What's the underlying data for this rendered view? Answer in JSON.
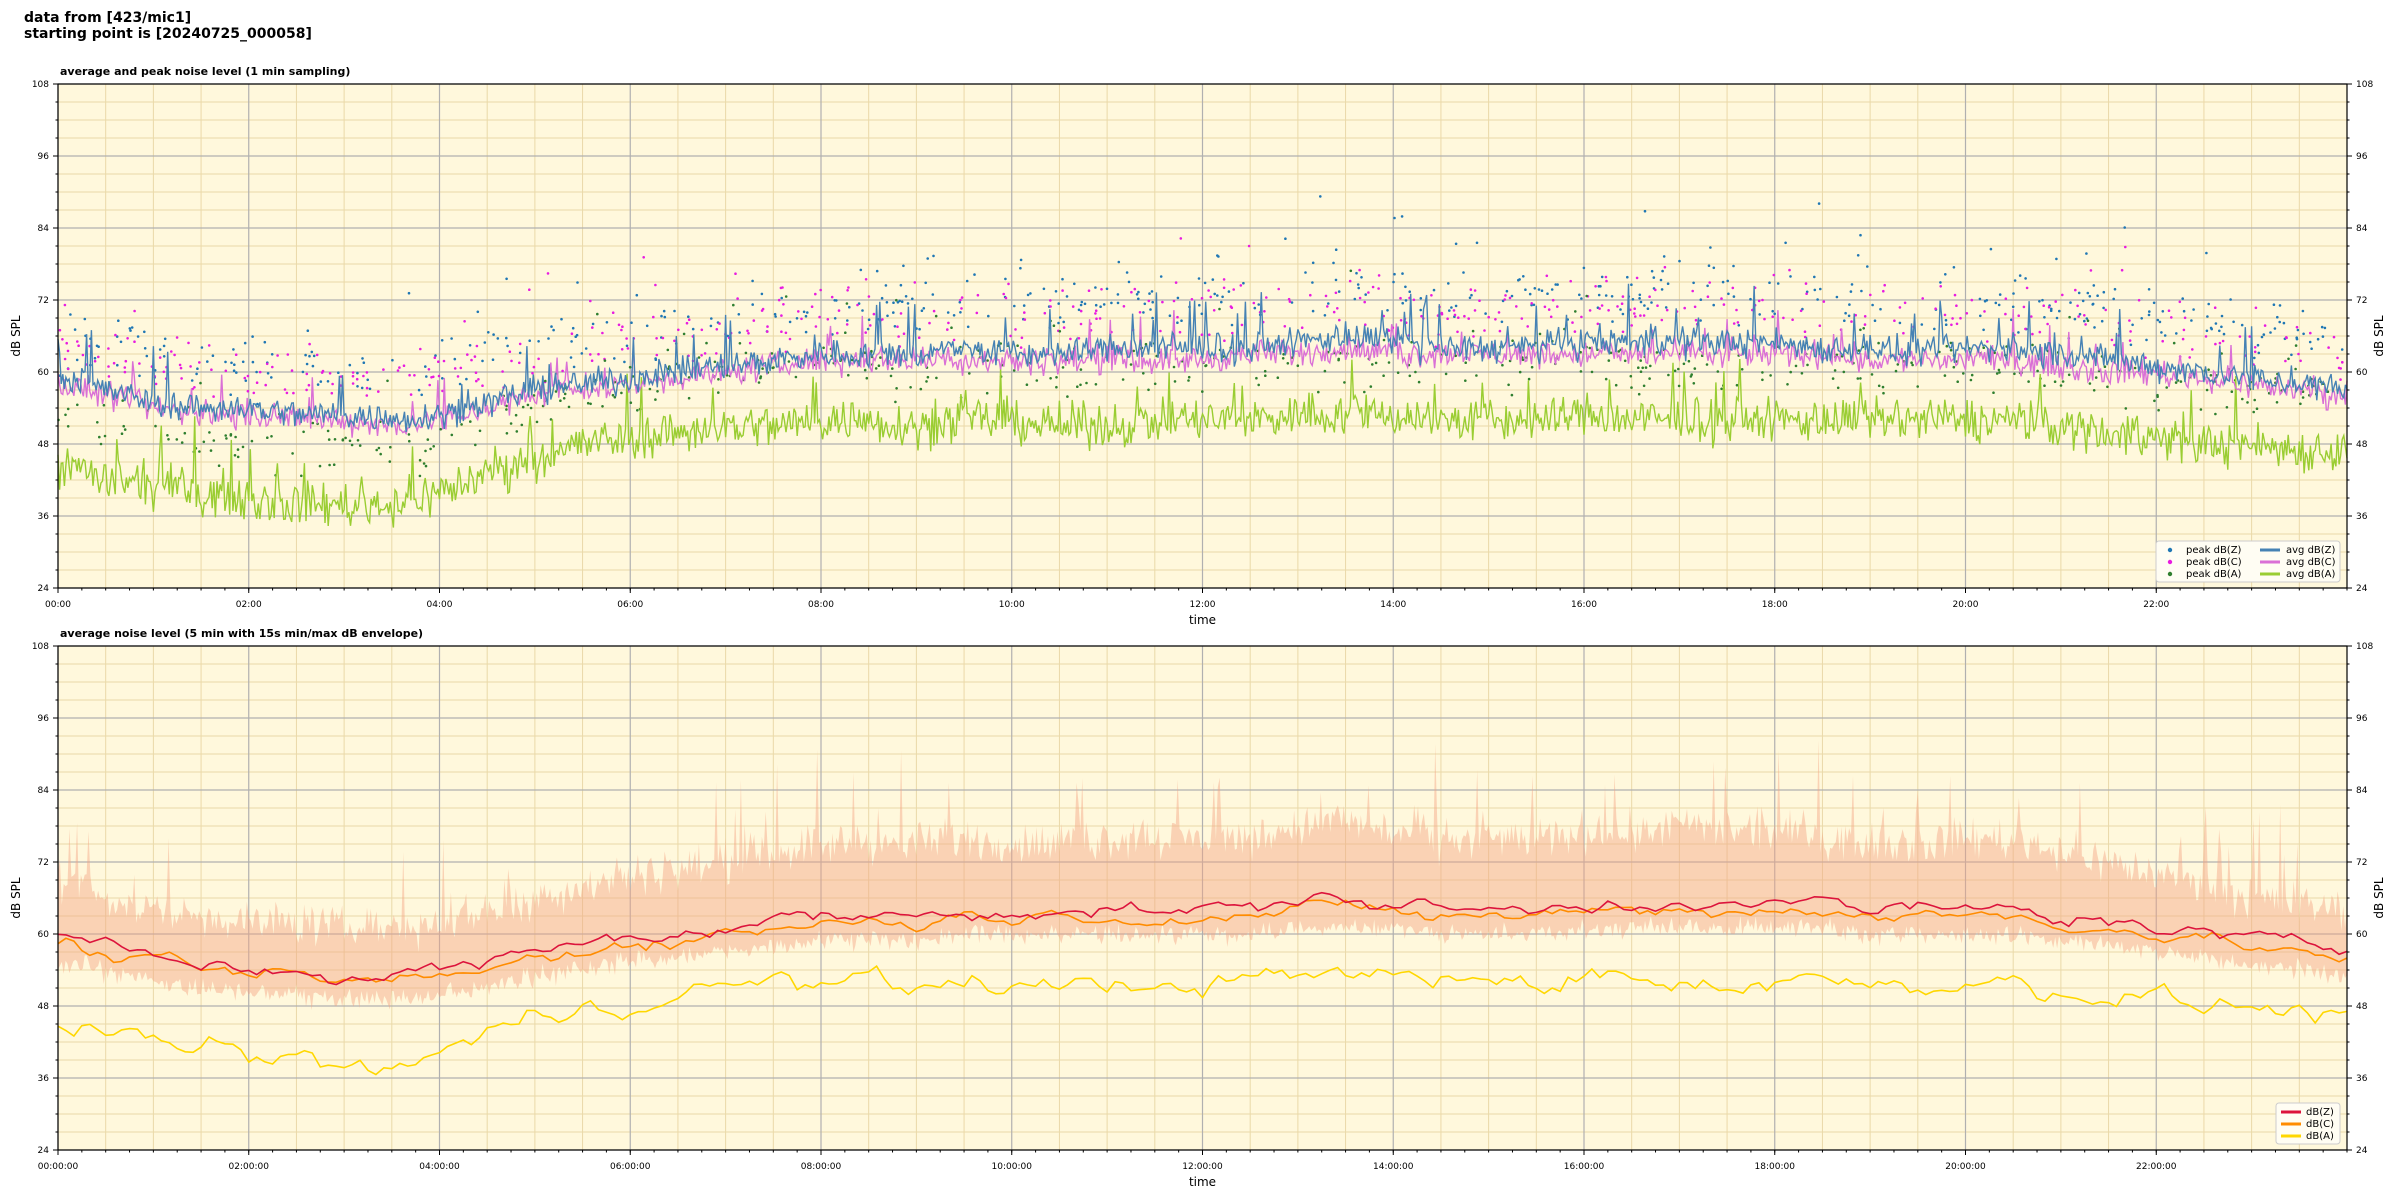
{
  "header": {
    "line1": "data from [423/mic1]",
    "line2": "starting point is [20240725_000058]"
  },
  "colors": {
    "plot_background": "#fff8dc",
    "grid_major": "#b0b0b0",
    "grid_minor": "#ead9a8",
    "peak_z": "#1f77b4",
    "peak_c": "#e81ce0",
    "peak_a": "#2f7f2f",
    "avg_z": "#4682b4",
    "avg_c": "#da70d6",
    "avg_a": "#9acd32",
    "env_z": "#dc143c",
    "env_c": "#ff8c00",
    "env_a": "#ffd700",
    "envelope_fill": "#f4a582"
  },
  "chart_data": [
    {
      "type": "line",
      "title": "average and peak noise level (1 min sampling)",
      "xlabel": "time",
      "ylabel": "dB SPL",
      "ylim": [
        24,
        108
      ],
      "xlim_hours": [
        0,
        24
      ],
      "x_ticks": [
        "00:00",
        "02:00",
        "04:00",
        "06:00",
        "08:00",
        "10:00",
        "12:00",
        "14:00",
        "16:00",
        "18:00",
        "20:00",
        "22:00"
      ],
      "y_ticks": [
        24,
        36,
        48,
        60,
        72,
        84,
        96,
        108
      ],
      "grid": true,
      "legend_position": "bottom-right",
      "legend_entries": [
        "peak dB(Z)",
        "peak dB(C)",
        "peak dB(A)",
        "avg dB(Z)",
        "avg dB(C)",
        "avg dB(A)"
      ],
      "x_hours": [
        0,
        0.5,
        1,
        1.5,
        2,
        2.5,
        3,
        3.5,
        4,
        4.5,
        5,
        5.5,
        6,
        6.5,
        7,
        7.5,
        8,
        8.5,
        9,
        9.5,
        10,
        10.5,
        11,
        11.5,
        12,
        12.5,
        13,
        13.5,
        14,
        14.5,
        15,
        15.5,
        16,
        16.5,
        17,
        17.5,
        18,
        18.5,
        19,
        19.5,
        20,
        20.5,
        21,
        21.5,
        22,
        22.5,
        23,
        23.5,
        24
      ],
      "series": [
        {
          "name": "avg dB(Z)",
          "values": [
            59,
            57,
            55,
            54,
            54,
            53,
            53,
            52,
            53,
            55,
            57,
            58,
            59,
            60,
            61,
            62,
            63,
            63,
            63,
            64,
            63,
            63,
            64,
            64,
            64,
            64,
            65,
            66,
            65,
            64,
            64,
            64,
            65,
            65,
            65,
            65,
            65,
            64,
            64,
            63,
            64,
            64,
            63,
            62,
            61,
            60,
            59,
            58,
            57
          ]
        },
        {
          "name": "avg dB(C)",
          "values": [
            58,
            56,
            54,
            53,
            53,
            52,
            52,
            51,
            52,
            54,
            56,
            57,
            58,
            59,
            60,
            61,
            62,
            62,
            62,
            62,
            62,
            62,
            62,
            62,
            62,
            63,
            63,
            64,
            63,
            63,
            63,
            63,
            63,
            63,
            63,
            63,
            63,
            63,
            62,
            62,
            62,
            62,
            61,
            60,
            60,
            59,
            58,
            57,
            56
          ]
        },
        {
          "name": "avg dB(A)",
          "values": [
            45,
            42,
            41,
            40,
            39,
            38,
            38,
            38,
            40,
            43,
            46,
            48,
            49,
            50,
            51,
            51,
            52,
            52,
            51,
            52,
            52,
            51,
            51,
            52,
            52,
            52,
            53,
            53,
            53,
            52,
            52,
            52,
            53,
            52,
            52,
            52,
            52,
            52,
            52,
            52,
            52,
            52,
            51,
            50,
            49,
            48,
            48,
            47,
            47
          ]
        },
        {
          "name": "peak dB(Z)",
          "values": [
            66,
            64,
            63,
            62,
            61,
            61,
            60,
            60,
            61,
            63,
            65,
            66,
            67,
            68,
            69,
            70,
            71,
            71,
            71,
            72,
            71,
            71,
            72,
            72,
            72,
            72,
            73,
            74,
            73,
            72,
            72,
            72,
            73,
            73,
            73,
            73,
            73,
            72,
            72,
            71,
            72,
            72,
            71,
            70,
            69,
            68,
            67,
            66,
            65
          ]
        },
        {
          "name": "peak dB(C)",
          "values": [
            64,
            62,
            61,
            60,
            59,
            59,
            58,
            58,
            59,
            61,
            63,
            64,
            65,
            66,
            67,
            68,
            69,
            69,
            69,
            70,
            69,
            69,
            70,
            70,
            70,
            70,
            71,
            72,
            71,
            70,
            70,
            70,
            71,
            71,
            71,
            71,
            71,
            70,
            70,
            69,
            70,
            70,
            69,
            68,
            67,
            66,
            65,
            64,
            63
          ]
        },
        {
          "name": "peak dB(A)",
          "values": [
            54,
            51,
            50,
            49,
            48,
            47,
            47,
            47,
            49,
            52,
            55,
            57,
            58,
            59,
            60,
            60,
            61,
            61,
            60,
            61,
            61,
            60,
            60,
            61,
            61,
            61,
            62,
            62,
            62,
            61,
            61,
            61,
            62,
            61,
            61,
            61,
            61,
            61,
            61,
            61,
            61,
            61,
            60,
            59,
            58,
            57,
            57,
            56,
            56
          ]
        }
      ]
    },
    {
      "type": "line",
      "title": "average noise level (5 min with 15s min/max dB envelope)",
      "xlabel": "time",
      "ylabel": "dB SPL",
      "ylim": [
        24,
        108
      ],
      "xlim_hours": [
        0,
        24
      ],
      "x_ticks": [
        "00:00:00",
        "02:00:00",
        "04:00:00",
        "06:00:00",
        "08:00:00",
        "10:00:00",
        "12:00:00",
        "14:00:00",
        "16:00:00",
        "18:00:00",
        "20:00:00",
        "22:00:00"
      ],
      "y_ticks": [
        24,
        36,
        48,
        60,
        72,
        84,
        96,
        108
      ],
      "grid": true,
      "legend_position": "bottom-right",
      "legend_entries": [
        "dB(Z)",
        "dB(C)",
        "dB(A)"
      ],
      "x_hours": [
        0,
        0.5,
        1,
        1.5,
        2,
        2.5,
        3,
        3.5,
        4,
        4.5,
        5,
        5.5,
        6,
        6.5,
        7,
        7.5,
        8,
        8.5,
        9,
        9.5,
        10,
        10.5,
        11,
        11.5,
        12,
        12.5,
        13,
        13.5,
        14,
        14.5,
        15,
        15.5,
        16,
        16.5,
        17,
        17.5,
        18,
        18.5,
        19,
        19.5,
        20,
        20.5,
        21,
        21.5,
        22,
        22.5,
        23,
        23.5,
        24
      ],
      "series": [
        {
          "name": "dB(Z)",
          "values": [
            59,
            58,
            56,
            55,
            54,
            54,
            53,
            53,
            54,
            55,
            57,
            58,
            60,
            60,
            61,
            62,
            63,
            63,
            63,
            64,
            64,
            64,
            64,
            64,
            64,
            64,
            66,
            66,
            65,
            64,
            64,
            64,
            65,
            65,
            66,
            65,
            65,
            65,
            64,
            64,
            64,
            64,
            63,
            62,
            61,
            60,
            59,
            58,
            57
          ]
        },
        {
          "name": "dB(C)",
          "values": [
            58,
            57,
            55,
            54,
            53,
            53,
            52,
            52,
            53,
            54,
            56,
            57,
            59,
            59,
            60,
            61,
            62,
            62,
            62,
            63,
            63,
            63,
            63,
            63,
            63,
            63,
            64,
            64,
            64,
            63,
            63,
            63,
            64,
            64,
            64,
            64,
            64,
            64,
            63,
            63,
            63,
            63,
            62,
            61,
            60,
            59,
            58,
            57,
            56
          ]
        },
        {
          "name": "dB(A)",
          "values": [
            46,
            44,
            42,
            41,
            40,
            39,
            38,
            38,
            40,
            43,
            46,
            48,
            49,
            50,
            51,
            52,
            52,
            52,
            51,
            52,
            52,
            51,
            51,
            52,
            52,
            52,
            53,
            53,
            53,
            52,
            52,
            52,
            53,
            53,
            52,
            52,
            52,
            52,
            52,
            52,
            52,
            52,
            51,
            50,
            49,
            48,
            48,
            47,
            47
          ]
        },
        {
          "name": "envelope max",
          "values": [
            68,
            66,
            64,
            63,
            62,
            62,
            61,
            61,
            62,
            64,
            66,
            68,
            70,
            71,
            72,
            74,
            75,
            75,
            75,
            76,
            75,
            75,
            76,
            76,
            76,
            76,
            78,
            79,
            77,
            76,
            76,
            76,
            77,
            77,
            78,
            77,
            77,
            76,
            76,
            75,
            76,
            76,
            74,
            72,
            70,
            68,
            66,
            65,
            64
          ]
        },
        {
          "name": "envelope min",
          "values": [
            55,
            54,
            52,
            51,
            50,
            50,
            49,
            49,
            50,
            51,
            53,
            54,
            56,
            56,
            57,
            58,
            59,
            59,
            59,
            60,
            60,
            60,
            60,
            60,
            60,
            60,
            61,
            61,
            61,
            60,
            60,
            60,
            61,
            61,
            61,
            61,
            61,
            61,
            60,
            60,
            60,
            60,
            59,
            58,
            57,
            56,
            55,
            54,
            53
          ]
        }
      ]
    }
  ]
}
